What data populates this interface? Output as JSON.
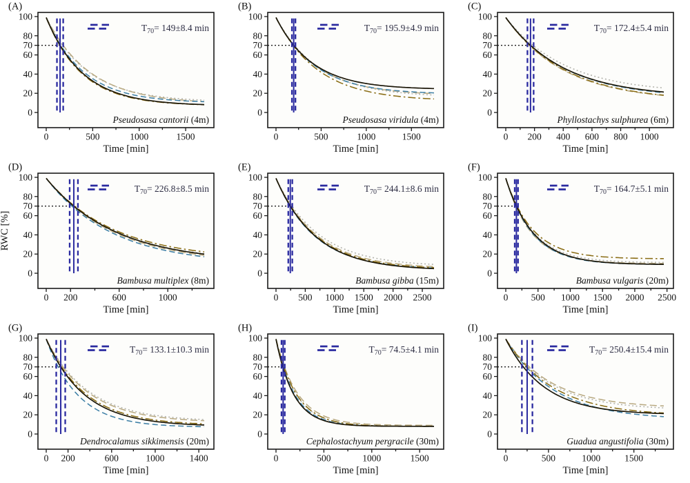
{
  "figure": {
    "xlabel": "Time [min]",
    "ylabel": "RWC [%]",
    "y_axis": {
      "ticks": [
        0,
        20,
        40,
        60,
        70,
        80,
        100
      ],
      "tick_labels": [
        "0",
        "20",
        "40",
        "60",
        "70",
        "80",
        "100"
      ],
      "range_shown": [
        0,
        100
      ]
    },
    "threshold_line_value": 70,
    "colors": {
      "frame": "#1a1a1a",
      "marker_navy": "#2a2aa0",
      "threshold_dotted": "#1a1a1a",
      "legend_text": "#2f2f45",
      "plot_bg": "#fdfdfb",
      "tick_text": "#111111"
    }
  },
  "chart_data": {
    "type": "line",
    "description": "Nine-panel relative water content (RWC) desiccation curves over time for bamboo species; five replicate curves per panel modeled as RWC(t)=floor+(99-floor)*exp(-k*t) with k set so RWC(t70_scale*t70_min)=70; navy vertical lines mark T70 ± error.",
    "series_styles": [
      {
        "name": "solid-black",
        "color": "#1c1708",
        "dash": "",
        "width": 1.7
      },
      {
        "name": "dashdot-olive",
        "color": "#8a6d15",
        "dash": "11 4 2.5 4",
        "width": 1.55
      },
      {
        "name": "dashed-steelblue",
        "color": "#3d7fa6",
        "dash": "8 4.5",
        "width": 1.55
      },
      {
        "name": "dashed-tan",
        "color": "#b9aa82",
        "dash": "10 5",
        "width": 1.55
      },
      {
        "name": "dotted-gray",
        "color": "#b3b3ac",
        "dash": "2 3.4",
        "width": 1.6
      }
    ],
    "marker": {
      "color": "#2a2aa0",
      "solid_width": 2,
      "dash_width": 2.3,
      "dash": "7 4.5",
      "err_visual_scale": 4
    },
    "panels": [
      {
        "letter": "(A)",
        "species_italic": "Pseudosasa cantorii",
        "species_suffix": " (4m)",
        "legend_t": "T",
        "legend_sub": "70",
        "legend_rest": "= 149±8.4 min",
        "t70_min": 149,
        "t70_err_min": 8.4,
        "has_ylabel": false,
        "x_axis": {
          "max_data": 1700,
          "ticks": [
            {
              "v": 0,
              "label": "0"
            },
            {
              "v": 250,
              "label": ""
            },
            {
              "v": 500,
              "label": "500"
            },
            {
              "v": 750,
              "label": ""
            },
            {
              "v": 1000,
              "label": "1000"
            },
            {
              "v": 1250,
              "label": ""
            },
            {
              "v": 1500,
              "label": "1500"
            }
          ]
        },
        "series": [
          {
            "style": "solid-black",
            "t70_scale": 1.0,
            "floor": 7
          },
          {
            "style": "dashdot-olive",
            "t70_scale": 0.97,
            "floor": 7
          },
          {
            "style": "dashed-steelblue",
            "t70_scale": 1.05,
            "floor": 10
          },
          {
            "style": "dashed-tan",
            "t70_scale": 1.22,
            "floor": 9
          },
          {
            "style": "dotted-gray",
            "t70_scale": 1.18,
            "floor": 11
          }
        ]
      },
      {
        "letter": "(B)",
        "species_italic": "Pseudosasa viridula",
        "species_suffix": " (4m)",
        "legend_t": "T",
        "legend_sub": "70",
        "legend_rest": "= 195.9±4.9 min",
        "t70_min": 195.9,
        "t70_err_min": 4.9,
        "has_ylabel": false,
        "x_axis": {
          "max_data": 1750,
          "ticks": [
            {
              "v": 0,
              "label": "0"
            },
            {
              "v": 250,
              "label": ""
            },
            {
              "v": 500,
              "label": "500"
            },
            {
              "v": 750,
              "label": ""
            },
            {
              "v": 1000,
              "label": "1000"
            },
            {
              "v": 1250,
              "label": ""
            },
            {
              "v": 1500,
              "label": "1500"
            }
          ]
        },
        "series": [
          {
            "style": "solid-black",
            "t70_scale": 1.0,
            "floor": 24
          },
          {
            "style": "dashdot-olive",
            "t70_scale": 0.97,
            "floor": 12
          },
          {
            "style": "dashed-steelblue",
            "t70_scale": 1.0,
            "floor": 19
          },
          {
            "style": "dashed-tan",
            "t70_scale": 1.02,
            "floor": 18
          },
          {
            "style": "dotted-gray",
            "t70_scale": 1.05,
            "floor": 16
          }
        ]
      },
      {
        "letter": "(C)",
        "species_italic": "Phyllostachys sulphurea",
        "species_suffix": " (6m)",
        "legend_t": "T",
        "legend_sub": "70",
        "legend_rest": "= 172.4±5.4 min",
        "t70_min": 172.4,
        "t70_err_min": 5.4,
        "has_ylabel": false,
        "x_axis": {
          "max_data": 1100,
          "ticks": [
            {
              "v": 0,
              "label": "0"
            },
            {
              "v": 100,
              "label": ""
            },
            {
              "v": 200,
              "label": "200"
            },
            {
              "v": 300,
              "label": ""
            },
            {
              "v": 400,
              "label": "400"
            },
            {
              "v": 500,
              "label": ""
            },
            {
              "v": 600,
              "label": "600"
            },
            {
              "v": 700,
              "label": ""
            },
            {
              "v": 800,
              "label": "800"
            },
            {
              "v": 900,
              "label": ""
            },
            {
              "v": 1000,
              "label": "1000"
            }
          ]
        },
        "series": [
          {
            "style": "solid-black",
            "t70_scale": 1.0,
            "floor": 16
          },
          {
            "style": "dashdot-olive",
            "t70_scale": 0.97,
            "floor": 12
          },
          {
            "style": "dashed-steelblue",
            "t70_scale": 1.0,
            "floor": 15
          },
          {
            "style": "dashed-tan",
            "t70_scale": 0.95,
            "floor": 12
          },
          {
            "style": "dotted-gray",
            "t70_scale": 1.1,
            "floor": 20
          }
        ]
      },
      {
        "letter": "(D)",
        "species_italic": "Bambusa multiplex",
        "species_suffix": " (8m)",
        "legend_t": "T",
        "legend_sub": "70",
        "legend_rest": "= 226.8±8.5 min",
        "t70_min": 226.8,
        "t70_err_min": 8.5,
        "has_ylabel": true,
        "x_axis": {
          "max_data": 1300,
          "ticks": [
            {
              "v": 0,
              "label": "0"
            },
            {
              "v": 200,
              "label": "200"
            },
            {
              "v": 400,
              "label": ""
            },
            {
              "v": 600,
              "label": "600"
            },
            {
              "v": 800,
              "label": ""
            },
            {
              "v": 1000,
              "label": "1000"
            },
            {
              "v": 1200,
              "label": ""
            }
          ]
        },
        "series": [
          {
            "style": "solid-black",
            "t70_scale": 1.0,
            "floor": 11
          },
          {
            "style": "dashdot-olive",
            "t70_scale": 1.03,
            "floor": 14
          },
          {
            "style": "dashed-steelblue",
            "t70_scale": 0.93,
            "floor": 9
          },
          {
            "style": "dashed-tan",
            "t70_scale": 0.97,
            "floor": 10
          },
          {
            "style": "dotted-gray",
            "t70_scale": 1.0,
            "floor": 12
          }
        ]
      },
      {
        "letter": "(E)",
        "species_italic": "Bambusa gibba",
        "species_suffix": " (15m)",
        "legend_t": "T",
        "legend_sub": "70",
        "legend_rest": "= 244.1±8.6 min",
        "t70_min": 244.1,
        "t70_err_min": 8.6,
        "has_ylabel": false,
        "x_axis": {
          "max_data": 2700,
          "ticks": [
            {
              "v": 0,
              "label": "0"
            },
            {
              "v": 250,
              "label": ""
            },
            {
              "v": 500,
              "label": "500"
            },
            {
              "v": 750,
              "label": ""
            },
            {
              "v": 1000,
              "label": "1000"
            },
            {
              "v": 1250,
              "label": ""
            },
            {
              "v": 1500,
              "label": "1500"
            },
            {
              "v": 1750,
              "label": ""
            },
            {
              "v": 2000,
              "label": "2000"
            },
            {
              "v": 2250,
              "label": ""
            },
            {
              "v": 2500,
              "label": "2500"
            }
          ]
        },
        "series": [
          {
            "style": "solid-black",
            "t70_scale": 1.0,
            "floor": 3
          },
          {
            "style": "dashdot-olive",
            "t70_scale": 1.02,
            "floor": 4
          },
          {
            "style": "dashed-steelblue",
            "t70_scale": 0.98,
            "floor": 4
          },
          {
            "style": "dashed-tan",
            "t70_scale": 1.05,
            "floor": 5
          },
          {
            "style": "dotted-gray",
            "t70_scale": 1.12,
            "floor": 7
          }
        ]
      },
      {
        "letter": "(F)",
        "species_italic": "Bambusa vulgaris",
        "species_suffix": " (20m)",
        "legend_t": "T",
        "legend_sub": "70",
        "legend_rest": "= 164.7±5.1 min",
        "t70_min": 164.7,
        "t70_err_min": 5.1,
        "has_ylabel": false,
        "x_axis": {
          "max_data": 2450,
          "ticks": [
            {
              "v": 0,
              "label": "0"
            },
            {
              "v": 250,
              "label": ""
            },
            {
              "v": 500,
              "label": "500"
            },
            {
              "v": 750,
              "label": ""
            },
            {
              "v": 1000,
              "label": "1000"
            },
            {
              "v": 1250,
              "label": ""
            },
            {
              "v": 1500,
              "label": "1500"
            },
            {
              "v": 1750,
              "label": ""
            },
            {
              "v": 2000,
              "label": "2000"
            },
            {
              "v": 2250,
              "label": ""
            },
            {
              "v": 2500,
              "label": "2500"
            }
          ]
        },
        "series": [
          {
            "style": "solid-black",
            "t70_scale": 1.0,
            "floor": 9
          },
          {
            "style": "dashdot-olive",
            "t70_scale": 1.06,
            "floor": 15
          },
          {
            "style": "dashed-steelblue",
            "t70_scale": 0.97,
            "floor": 9
          },
          {
            "style": "dashed-tan",
            "t70_scale": 0.94,
            "floor": 10
          },
          {
            "style": "dotted-gray",
            "t70_scale": 1.02,
            "floor": 11
          }
        ]
      },
      {
        "letter": "(G)",
        "species_italic": "Dendrocalamus sikkimensis",
        "species_suffix": " (20m)",
        "legend_t": "T",
        "legend_sub": "70",
        "legend_rest": "= 133.1±10.3 min",
        "t70_min": 133.1,
        "t70_err_min": 10.3,
        "has_ylabel": false,
        "x_axis": {
          "max_data": 1450,
          "ticks": [
            {
              "v": 0,
              "label": "0"
            },
            {
              "v": 200,
              "label": "200"
            },
            {
              "v": 400,
              "label": ""
            },
            {
              "v": 600,
              "label": "600"
            },
            {
              "v": 800,
              "label": ""
            },
            {
              "v": 1000,
              "label": "1000"
            },
            {
              "v": 1200,
              "label": ""
            },
            {
              "v": 1400,
              "label": "1400"
            }
          ]
        },
        "series": [
          {
            "style": "solid-black",
            "t70_scale": 1.0,
            "floor": 8
          },
          {
            "style": "dashdot-olive",
            "t70_scale": 1.05,
            "floor": 9
          },
          {
            "style": "dashed-steelblue",
            "t70_scale": 0.82,
            "floor": 7
          },
          {
            "style": "dashed-tan",
            "t70_scale": 1.15,
            "floor": 12
          },
          {
            "style": "dotted-gray",
            "t70_scale": 1.2,
            "floor": 13
          }
        ]
      },
      {
        "letter": "(H)",
        "species_italic": "Cephalostachyum pergracile",
        "species_suffix": " (30m)",
        "legend_t": "T",
        "legend_sub": "70",
        "legend_rest": "= 74.5±4.1 min",
        "t70_min": 74.5,
        "t70_err_min": 4.1,
        "has_ylabel": false,
        "x_axis": {
          "max_data": 1650,
          "ticks": [
            {
              "v": 0,
              "label": "0"
            },
            {
              "v": 250,
              "label": ""
            },
            {
              "v": 500,
              "label": "500"
            },
            {
              "v": 750,
              "label": ""
            },
            {
              "v": 1000,
              "label": "1000"
            },
            {
              "v": 1250,
              "label": ""
            },
            {
              "v": 1500,
              "label": "1500"
            }
          ]
        },
        "series": [
          {
            "style": "solid-black",
            "t70_scale": 0.95,
            "floor": 8
          },
          {
            "style": "dashdot-olive",
            "t70_scale": 1.1,
            "floor": 8
          },
          {
            "style": "dashed-steelblue",
            "t70_scale": 1.0,
            "floor": 8
          },
          {
            "style": "dashed-tan",
            "t70_scale": 1.18,
            "floor": 9
          },
          {
            "style": "dotted-gray",
            "t70_scale": 1.08,
            "floor": 8
          }
        ]
      },
      {
        "letter": "(I)",
        "species_italic": "Guadua angustifolia",
        "species_suffix": " (30m)",
        "legend_t": "T",
        "legend_sub": "70",
        "legend_rest": "= 250.4±15.4 min",
        "t70_min": 250.4,
        "t70_err_min": 15.4,
        "has_ylabel": false,
        "x_axis": {
          "max_data": 1850,
          "ticks": [
            {
              "v": 0,
              "label": "0"
            },
            {
              "v": 250,
              "label": ""
            },
            {
              "v": 500,
              "label": "500"
            },
            {
              "v": 750,
              "label": ""
            },
            {
              "v": 1000,
              "label": "1000"
            },
            {
              "v": 1250,
              "label": ""
            },
            {
              "v": 1500,
              "label": "1500"
            },
            {
              "v": 1750,
              "label": ""
            }
          ]
        },
        "series": [
          {
            "style": "solid-black",
            "t70_scale": 0.82,
            "floor": 20
          },
          {
            "style": "dashdot-olive",
            "t70_scale": 1.0,
            "floor": 19
          },
          {
            "style": "dashed-steelblue",
            "t70_scale": 0.95,
            "floor": 15
          },
          {
            "style": "dashed-tan",
            "t70_scale": 1.1,
            "floor": 27
          },
          {
            "style": "dotted-gray",
            "t70_scale": 1.05,
            "floor": 25
          }
        ]
      }
    ]
  }
}
